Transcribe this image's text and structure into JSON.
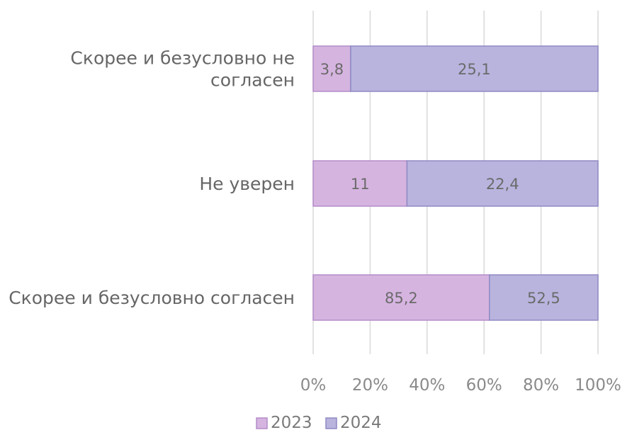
{
  "chart_data": {
    "type": "bar",
    "orientation": "horizontal",
    "stacking": "percent",
    "categories": [
      "Скорее и безусловно не согласен",
      "Не уверен",
      "Скорее и безусловно согласен"
    ],
    "category_lines": [
      [
        "Скорее и безусловно не",
        "согласен"
      ],
      [
        "Не уверен"
      ],
      [
        "Скорее и безусловно согласен"
      ]
    ],
    "series": [
      {
        "name": "2023",
        "values": [
          3.8,
          11,
          85.2
        ],
        "labels": [
          "3,8",
          "11",
          "85,2"
        ],
        "color": "#d6b4e0",
        "stroke": "#b48cc8"
      },
      {
        "name": "2024",
        "values": [
          25.1,
          22.4,
          52.5
        ],
        "labels": [
          "25,1",
          "22,4",
          "52,5"
        ],
        "color": "#b8b4de",
        "stroke": "#8f8ac4"
      }
    ],
    "xticks": [
      "0%",
      "20%",
      "40%",
      "60%",
      "80%",
      "100%"
    ],
    "xlim": [
      0,
      100
    ],
    "grid": true,
    "legend": "bottom",
    "title": "",
    "xlabel": "",
    "ylabel": ""
  }
}
